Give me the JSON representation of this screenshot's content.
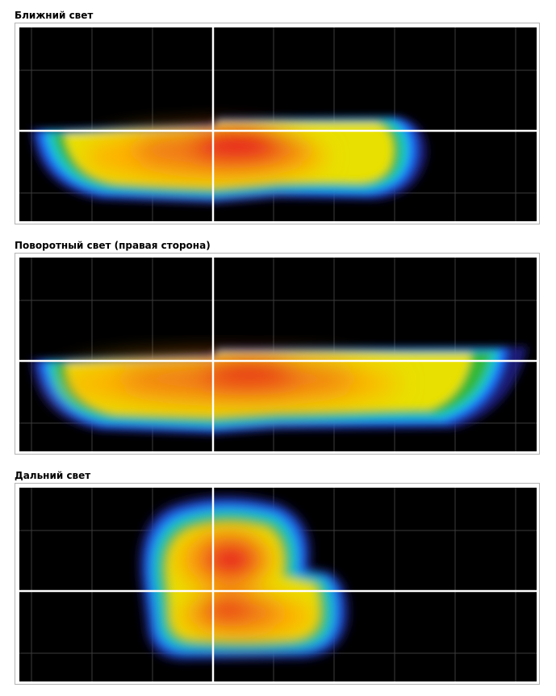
{
  "panels": [
    {
      "title": "Ближний свет"
    },
    {
      "title": "Поворотный свет (правая сторона)"
    },
    {
      "title": "Дальний свет"
    }
  ],
  "colors": {
    "background": "#000000",
    "grid": "#3c3c3c",
    "crosshair": "#ffffff",
    "heatmap_scale": [
      "#2a1f8a",
      "#1a6cff",
      "#18c8d8",
      "#2cbf3c",
      "#e8e000",
      "#ffc800",
      "#f07818",
      "#e8181c"
    ]
  }
}
